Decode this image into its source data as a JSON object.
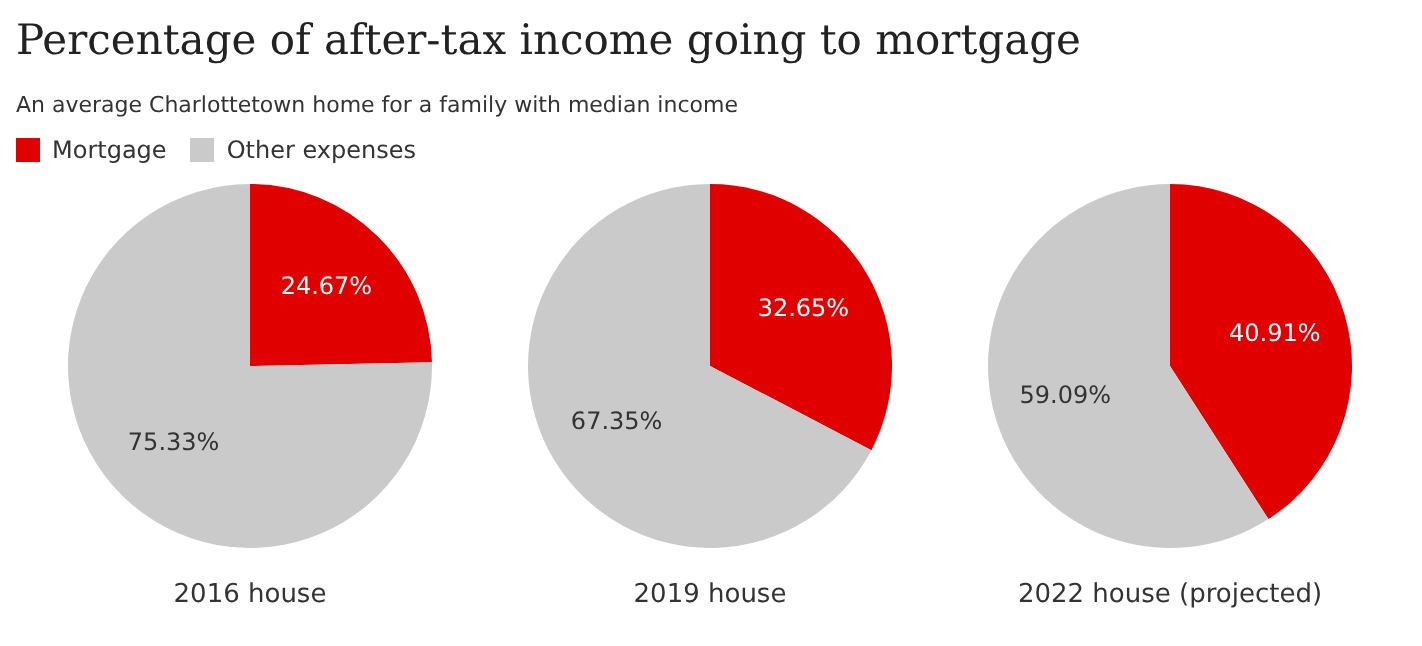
{
  "chart_data": [
    {
      "type": "pie",
      "title": "Percentage of after-tax income going to mortgage",
      "subtitle": "An average Charlottetown home for a family with median income",
      "legend": "top left",
      "xlabel": "2016 house",
      "categories": [
        "Mortgage",
        "Other expenses"
      ],
      "values": [
        24.67,
        75.33
      ],
      "colors": [
        "#e00000",
        "#cbcaca"
      ],
      "value_labels": [
        "24.67%",
        "75.33%"
      ]
    },
    {
      "type": "pie",
      "xlabel": "2019 house",
      "categories": [
        null,
        null
      ],
      "values": [
        32.65,
        67.35
      ],
      "colors": [
        "#e00000",
        "#cbcaca"
      ],
      "value_labels": [
        "32.65%",
        "67.35%"
      ]
    },
    {
      "type": "pie",
      "xlabel": "2022 house (projected)",
      "categories": [
        null,
        null
      ],
      "values": [
        40.91,
        59.09
      ],
      "colors": [
        "#e00000",
        "#cbcaca"
      ],
      "value_labels": [
        "40.91%",
        "59.09%"
      ]
    }
  ]
}
